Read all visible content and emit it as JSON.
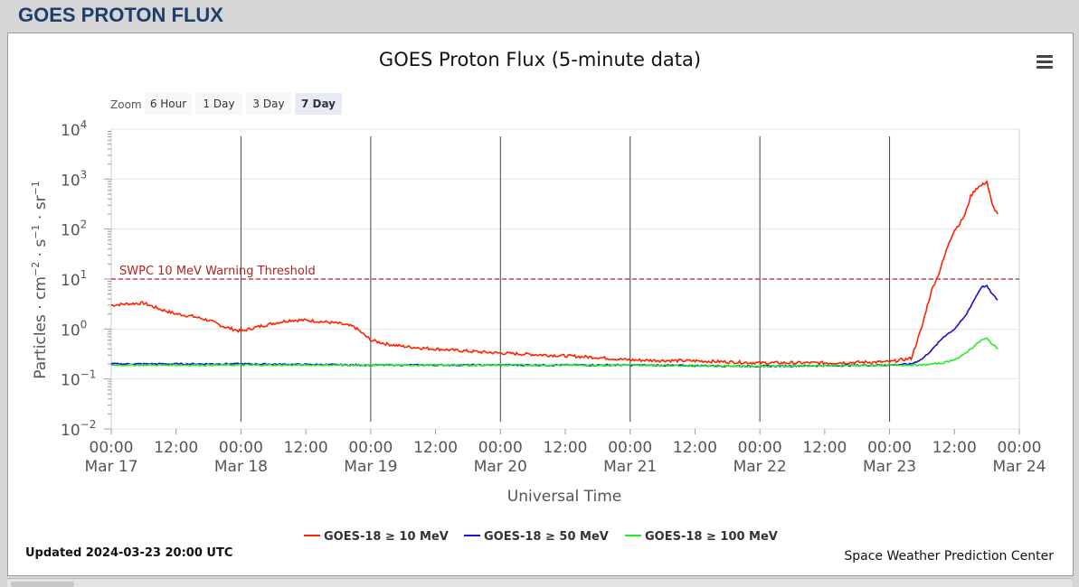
{
  "page": {
    "heading": "GOES PROTON FLUX"
  },
  "chart": {
    "title": "GOES Proton Flux (5-minute data)",
    "zoom_label": "Zoom",
    "zoom_buttons": [
      {
        "label": "6 Hour",
        "active": false
      },
      {
        "label": "1 Day",
        "active": false
      },
      {
        "label": "3 Day",
        "active": false
      },
      {
        "label": "7 Day",
        "active": true
      }
    ],
    "updated": "Updated 2024-03-23 20:00 UTC",
    "credit": "Space Weather Prediction Center"
  },
  "chart_data": {
    "type": "line",
    "xlabel": "Universal Time",
    "ylabel_parts": [
      "Particles · cm",
      "−2",
      " · s",
      "−1",
      " · sr",
      "−1"
    ],
    "y_scale": "log",
    "ylim": [
      0.01,
      10000
    ],
    "y_ticks": [
      {
        "value": 0.01,
        "base": "10",
        "exp": "−2"
      },
      {
        "value": 0.1,
        "base": "10",
        "exp": "−1"
      },
      {
        "value": 1,
        "base": "10",
        "exp": "0"
      },
      {
        "value": 10,
        "base": "10",
        "exp": "1"
      },
      {
        "value": 100,
        "base": "10",
        "exp": "2"
      },
      {
        "value": 1000,
        "base": "10",
        "exp": "3"
      },
      {
        "value": 10000,
        "base": "10",
        "exp": "4"
      }
    ],
    "xlim": [
      "2024-03-17 00:00",
      "2024-03-24 00:00"
    ],
    "x_ticks": [
      {
        "time": "2024-03-17 00:00",
        "label": "00:00",
        "date": "Mar 17"
      },
      {
        "time": "2024-03-17 12:00",
        "label": "12:00",
        "date": ""
      },
      {
        "time": "2024-03-18 00:00",
        "label": "00:00",
        "date": "Mar 18"
      },
      {
        "time": "2024-03-18 12:00",
        "label": "12:00",
        "date": ""
      },
      {
        "time": "2024-03-19 00:00",
        "label": "00:00",
        "date": "Mar 19"
      },
      {
        "time": "2024-03-19 12:00",
        "label": "12:00",
        "date": ""
      },
      {
        "time": "2024-03-20 00:00",
        "label": "00:00",
        "date": "Mar 20"
      },
      {
        "time": "2024-03-20 12:00",
        "label": "12:00",
        "date": ""
      },
      {
        "time": "2024-03-21 00:00",
        "label": "00:00",
        "date": "Mar 21"
      },
      {
        "time": "2024-03-21 12:00",
        "label": "12:00",
        "date": ""
      },
      {
        "time": "2024-03-22 00:00",
        "label": "00:00",
        "date": "Mar 22"
      },
      {
        "time": "2024-03-22 12:00",
        "label": "12:00",
        "date": ""
      },
      {
        "time": "2024-03-23 00:00",
        "label": "00:00",
        "date": "Mar 23"
      },
      {
        "time": "2024-03-23 12:00",
        "label": "12:00",
        "date": ""
      },
      {
        "time": "2024-03-24 00:00",
        "label": "00:00",
        "date": "Mar 24"
      }
    ],
    "threshold": {
      "value": 10,
      "label": "SWPC 10 MeV Warning Threshold",
      "color": "#b22222"
    },
    "legend_position": "bottom-center",
    "grid": true,
    "series": [
      {
        "name": "GOES-18 ≥ 10 MeV",
        "color": "#ff2200",
        "points": [
          [
            "2024-03-17 00:00",
            3.0
          ],
          [
            "2024-03-17 03:00",
            3.2
          ],
          [
            "2024-03-17 06:00",
            3.3
          ],
          [
            "2024-03-17 09:00",
            2.5
          ],
          [
            "2024-03-17 12:00",
            2.0
          ],
          [
            "2024-03-17 15:00",
            1.8
          ],
          [
            "2024-03-17 18:00",
            1.5
          ],
          [
            "2024-03-17 21:00",
            1.1
          ],
          [
            "2024-03-18 00:00",
            0.9
          ],
          [
            "2024-03-18 03:00",
            1.1
          ],
          [
            "2024-03-18 06:00",
            1.3
          ],
          [
            "2024-03-18 09:00",
            1.5
          ],
          [
            "2024-03-18 12:00",
            1.5
          ],
          [
            "2024-03-18 15:00",
            1.4
          ],
          [
            "2024-03-18 18:00",
            1.3
          ],
          [
            "2024-03-18 21:00",
            1.1
          ],
          [
            "2024-03-19 00:00",
            0.6
          ],
          [
            "2024-03-19 03:00",
            0.5
          ],
          [
            "2024-03-19 06:00",
            0.45
          ],
          [
            "2024-03-19 09:00",
            0.42
          ],
          [
            "2024-03-19 12:00",
            0.4
          ],
          [
            "2024-03-19 18:00",
            0.36
          ],
          [
            "2024-03-20 00:00",
            0.33
          ],
          [
            "2024-03-20 06:00",
            0.31
          ],
          [
            "2024-03-20 12:00",
            0.29
          ],
          [
            "2024-03-20 18:00",
            0.27
          ],
          [
            "2024-03-21 00:00",
            0.24
          ],
          [
            "2024-03-21 12:00",
            0.23
          ],
          [
            "2024-03-22 00:00",
            0.21
          ],
          [
            "2024-03-22 12:00",
            0.21
          ],
          [
            "2024-03-23 00:00",
            0.22
          ],
          [
            "2024-03-23 04:00",
            0.26
          ],
          [
            "2024-03-23 06:00",
            1.1
          ],
          [
            "2024-03-23 07:00",
            3.0
          ],
          [
            "2024-03-23 08:00",
            7.0
          ],
          [
            "2024-03-23 09:00",
            12
          ],
          [
            "2024-03-23 10:00",
            25
          ],
          [
            "2024-03-23 11:00",
            55
          ],
          [
            "2024-03-23 12:00",
            95
          ],
          [
            "2024-03-23 13:00",
            130
          ],
          [
            "2024-03-23 14:00",
            200
          ],
          [
            "2024-03-23 15:00",
            450
          ],
          [
            "2024-03-23 16:00",
            650
          ],
          [
            "2024-03-23 17:00",
            750
          ],
          [
            "2024-03-23 18:00",
            900
          ],
          [
            "2024-03-23 19:00",
            300
          ],
          [
            "2024-03-23 20:00",
            200
          ]
        ]
      },
      {
        "name": "GOES-18 ≥ 50 MeV",
        "color": "#1a0fcc",
        "points": [
          [
            "2024-03-17 00:00",
            0.2
          ],
          [
            "2024-03-18 00:00",
            0.2
          ],
          [
            "2024-03-19 00:00",
            0.19
          ],
          [
            "2024-03-20 00:00",
            0.19
          ],
          [
            "2024-03-21 00:00",
            0.19
          ],
          [
            "2024-03-22 00:00",
            0.18
          ],
          [
            "2024-03-23 00:00",
            0.19
          ],
          [
            "2024-03-23 04:00",
            0.2
          ],
          [
            "2024-03-23 06:00",
            0.25
          ],
          [
            "2024-03-23 08:00",
            0.4
          ],
          [
            "2024-03-23 10:00",
            0.7
          ],
          [
            "2024-03-23 12:00",
            1.0
          ],
          [
            "2024-03-23 14:00",
            1.8
          ],
          [
            "2024-03-23 16:00",
            4.5
          ],
          [
            "2024-03-23 17:00",
            7.0
          ],
          [
            "2024-03-23 18:00",
            7.2
          ],
          [
            "2024-03-23 19:00",
            5.0
          ],
          [
            "2024-03-23 20:00",
            3.8
          ]
        ]
      },
      {
        "name": "GOES-18 ≥ 100 MeV",
        "color": "#22ee22",
        "points": [
          [
            "2024-03-17 00:00",
            0.19
          ],
          [
            "2024-03-18 00:00",
            0.19
          ],
          [
            "2024-03-19 00:00",
            0.19
          ],
          [
            "2024-03-20 00:00",
            0.19
          ],
          [
            "2024-03-21 00:00",
            0.19
          ],
          [
            "2024-03-22 00:00",
            0.18
          ],
          [
            "2024-03-23 00:00",
            0.19
          ],
          [
            "2024-03-23 06:00",
            0.19
          ],
          [
            "2024-03-23 10:00",
            0.21
          ],
          [
            "2024-03-23 13:00",
            0.27
          ],
          [
            "2024-03-23 15:00",
            0.4
          ],
          [
            "2024-03-23 17:00",
            0.6
          ],
          [
            "2024-03-23 18:00",
            0.65
          ],
          [
            "2024-03-23 19:00",
            0.5
          ],
          [
            "2024-03-23 20:00",
            0.4
          ]
        ]
      }
    ]
  }
}
